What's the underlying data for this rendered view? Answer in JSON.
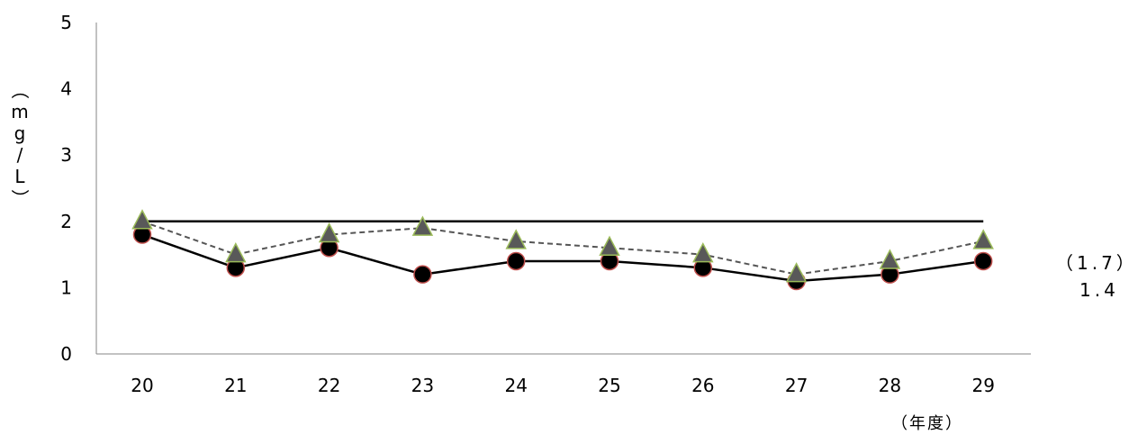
{
  "chart_data": {
    "type": "line",
    "categories": [
      "20",
      "21",
      "22",
      "23",
      "24",
      "25",
      "26",
      "27",
      "28",
      "29"
    ],
    "ylim": [
      0,
      5
    ],
    "yticks": [
      "0",
      "1",
      "2",
      "3",
      "4",
      "5"
    ],
    "ylabel": "（mg/L）",
    "xlabel": "（年度）",
    "series": [
      {
        "name": "",
        "style": "dashed",
        "marker": "triangle",
        "line_color": "#555555",
        "marker_fill": "#595959",
        "marker_edge": "#9bbb59",
        "values": [
          2.0,
          1.5,
          1.8,
          1.9,
          1.7,
          1.6,
          1.5,
          1.2,
          1.4,
          1.7
        ]
      },
      {
        "name": "",
        "style": "solid",
        "marker": "circle",
        "line_color": "#000000",
        "marker_fill": "#000000",
        "marker_edge": "#c0504d",
        "values": [
          1.8,
          1.3,
          1.6,
          1.2,
          1.4,
          1.4,
          1.3,
          1.1,
          1.2,
          1.4
        ]
      }
    ],
    "reference_line": {
      "value": 2,
      "color": "#000000"
    },
    "annotations": {
      "dashed_end": "（1.7）",
      "solid_end": "1.4"
    },
    "grid": false
  }
}
